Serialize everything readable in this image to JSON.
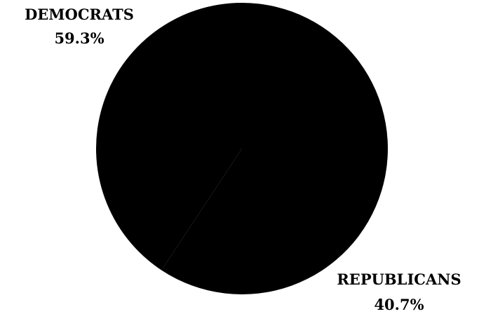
{
  "chart_data": {
    "type": "pie",
    "slices": [
      {
        "name": "DEMOCRATS",
        "value_label": "59.3%",
        "value": 59.3,
        "color": "#000000"
      },
      {
        "name": "REPUBLICANS",
        "value_label": "40.7%",
        "value": 40.7,
        "color": "#000000"
      }
    ],
    "legend": "none"
  }
}
